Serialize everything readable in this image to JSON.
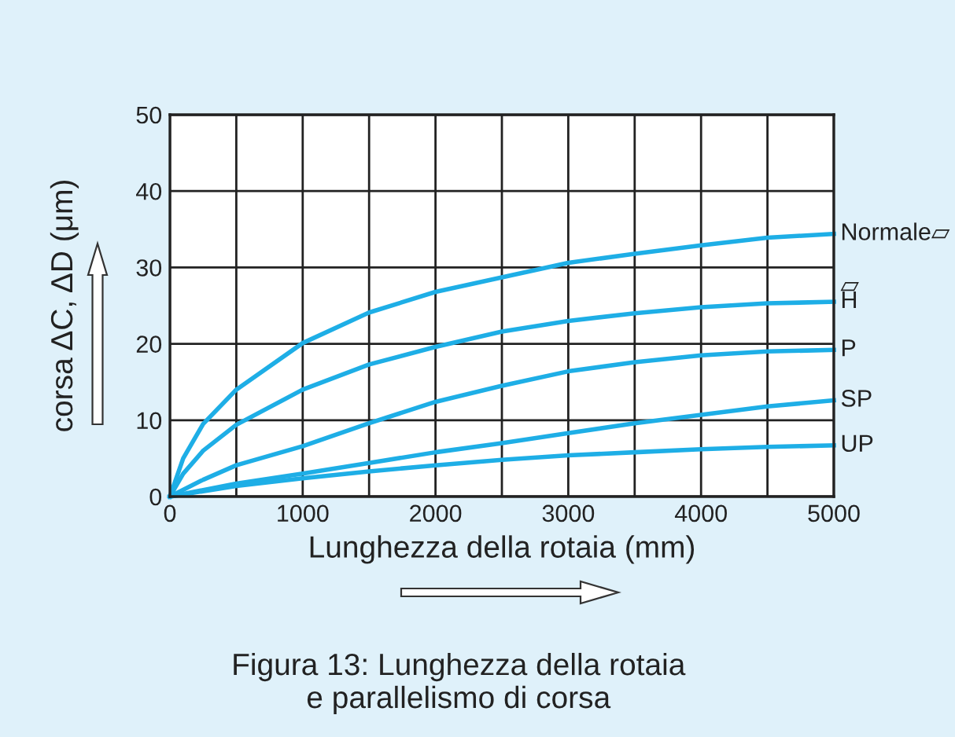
{
  "chart_data": {
    "type": "line",
    "xlabel": "Lunghezza della rotaia (mm)",
    "ylabel": "corsa ΔC, ΔD (μm)",
    "annotations": [
      "▱",
      "Figura 13: Lunghezza della rotaia\ne parallelismo di corsa"
    ],
    "xlim": [
      0,
      5000
    ],
    "ylim": [
      0,
      50
    ],
    "xticks": [
      0,
      {
        "value": 500,
        "label": null
      },
      1000,
      {
        "value": 1500,
        "label": null
      },
      2000,
      {
        "value": 2500,
        "label": null
      },
      3000,
      {
        "value": 3500,
        "label": null
      },
      4000,
      {
        "value": 4500,
        "label": null
      },
      5000
    ],
    "yticks": [
      0,
      10,
      20,
      30,
      40,
      50
    ],
    "grid": true,
    "legend": false,
    "marker": "none",
    "line_style": "solid",
    "series": [
      {
        "name": "Normale▱",
        "color": "#1eaee6",
        "x": [
          0,
          100,
          250,
          500,
          1000,
          1500,
          2000,
          2500,
          3000,
          3500,
          4000,
          4500,
          5000
        ],
        "values": [
          0,
          5,
          9.5,
          14,
          20.1,
          24.1,
          26.8,
          28.7,
          30.6,
          31.8,
          32.9,
          33.9,
          34.4
        ]
      },
      {
        "name": "H",
        "color": "#1eaee6",
        "x": [
          0,
          100,
          250,
          500,
          1000,
          1500,
          2000,
          2500,
          3000,
          3500,
          4000,
          4500,
          5000
        ],
        "values": [
          0,
          3,
          6,
          9.4,
          14,
          17.3,
          19.6,
          21.6,
          23,
          24,
          24.8,
          25.3,
          25.5
        ]
      },
      {
        "name": "P",
        "color": "#1eaee6",
        "x": [
          0,
          250,
          500,
          1000,
          1500,
          2000,
          2500,
          3000,
          3500,
          4000,
          4500,
          5000
        ],
        "values": [
          0,
          2.2,
          4.1,
          6.6,
          9.6,
          12.4,
          14.5,
          16.4,
          17.6,
          18.5,
          19,
          19.2
        ]
      },
      {
        "name": "SP",
        "color": "#1eaee6",
        "x": [
          0,
          500,
          1000,
          1500,
          2000,
          2500,
          3000,
          3500,
          4000,
          4500,
          5000
        ],
        "values": [
          0,
          1.7,
          3,
          4.4,
          5.8,
          7,
          8.3,
          9.6,
          10.7,
          11.8,
          12.6
        ]
      },
      {
        "name": "UP",
        "color": "#1eaee6",
        "x": [
          0,
          500,
          1000,
          1500,
          2000,
          2500,
          3000,
          3500,
          4000,
          4500,
          5000
        ],
        "values": [
          0,
          1.4,
          2.4,
          3.3,
          4.1,
          4.8,
          5.4,
          5.8,
          6.2,
          6.5,
          6.7
        ]
      }
    ]
  }
}
